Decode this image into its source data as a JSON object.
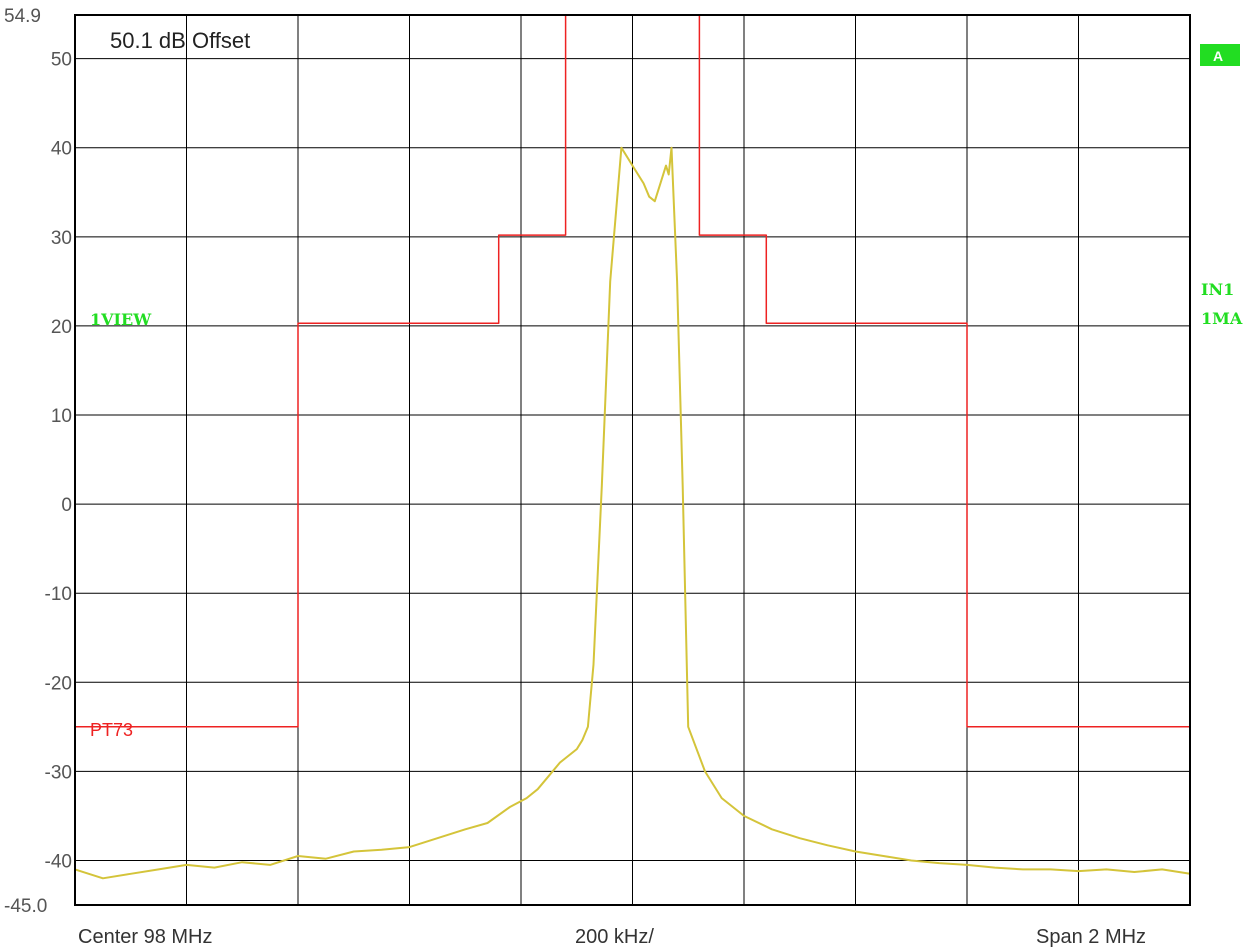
{
  "chart_data": {
    "type": "line",
    "title": "",
    "offset_label": "50.1 dB Offset",
    "xlabel": "",
    "ylabel": "",
    "footer": {
      "left": "Center 98 MHz",
      "center": "200 kHz/",
      "right": "Span 2 MHz"
    },
    "x_range_mhz": [
      97.0,
      99.0
    ],
    "ylim": [
      -45.0,
      54.9
    ],
    "y_ticks": [
      50,
      40,
      30,
      20,
      10,
      0,
      -10,
      -20,
      -30,
      -40
    ],
    "y_top_label": "54.9",
    "y_bottom_label": "-45.0",
    "x_divisions": 10,
    "grid": true,
    "colors": {
      "trace": "#d4c43a",
      "limit": "#ee2222",
      "marker": "#22dd22",
      "grid": "#000000"
    },
    "markers": {
      "view": "1VIEW",
      "limit_name": "PT73",
      "badge": "A",
      "right_top": "IN1",
      "right_bottom": "1MA"
    },
    "series": [
      {
        "name": "PT73",
        "kind": "limit-line",
        "x": [
          97.0,
          97.4,
          97.4,
          97.76,
          97.76,
          97.88,
          97.88,
          98.12,
          98.12,
          98.24,
          98.24,
          98.6,
          98.6,
          99.0
        ],
        "y": [
          -25,
          -25,
          20.3,
          20.3,
          30.2,
          30.2,
          54.9,
          54.9,
          30.2,
          30.2,
          20.3,
          20.3,
          -25,
          -25
        ]
      },
      {
        "name": "1VIEW",
        "kind": "trace",
        "x": [
          97.0,
          97.05,
          97.1,
          97.15,
          97.2,
          97.25,
          97.3,
          97.35,
          97.4,
          97.45,
          97.5,
          97.55,
          97.6,
          97.65,
          97.7,
          97.74,
          97.78,
          97.81,
          97.83,
          97.85,
          97.87,
          97.9,
          97.91,
          97.92,
          97.93,
          97.945,
          97.96,
          97.98,
          98.0,
          98.02,
          98.03,
          98.04,
          98.045,
          98.05,
          98.06,
          98.065,
          98.07,
          98.08,
          98.09,
          98.1,
          98.13,
          98.16,
          98.2,
          98.25,
          98.3,
          98.35,
          98.4,
          98.45,
          98.5,
          98.55,
          98.6,
          98.65,
          98.7,
          98.75,
          98.8,
          98.85,
          98.9,
          98.95,
          99.0
        ],
        "y": [
          -41,
          -42,
          -41.5,
          -41,
          -40.5,
          -40.8,
          -40.2,
          -40.5,
          -39.5,
          -39.8,
          -39,
          -38.8,
          -38.5,
          -37.5,
          -36.5,
          -35.8,
          -34,
          -33,
          -32,
          -30.5,
          -29,
          -27.5,
          -26.5,
          -25,
          -18,
          2,
          25,
          40,
          38,
          36,
          34.5,
          34,
          35,
          36,
          38,
          37,
          40,
          25,
          2,
          -25,
          -30,
          -33,
          -35,
          -36.5,
          -37.5,
          -38.3,
          -39,
          -39.5,
          -40,
          -40.3,
          -40.5,
          -40.8,
          -41,
          -41,
          -41.2,
          -41,
          -41.3,
          -41,
          -41.5
        ]
      }
    ]
  }
}
